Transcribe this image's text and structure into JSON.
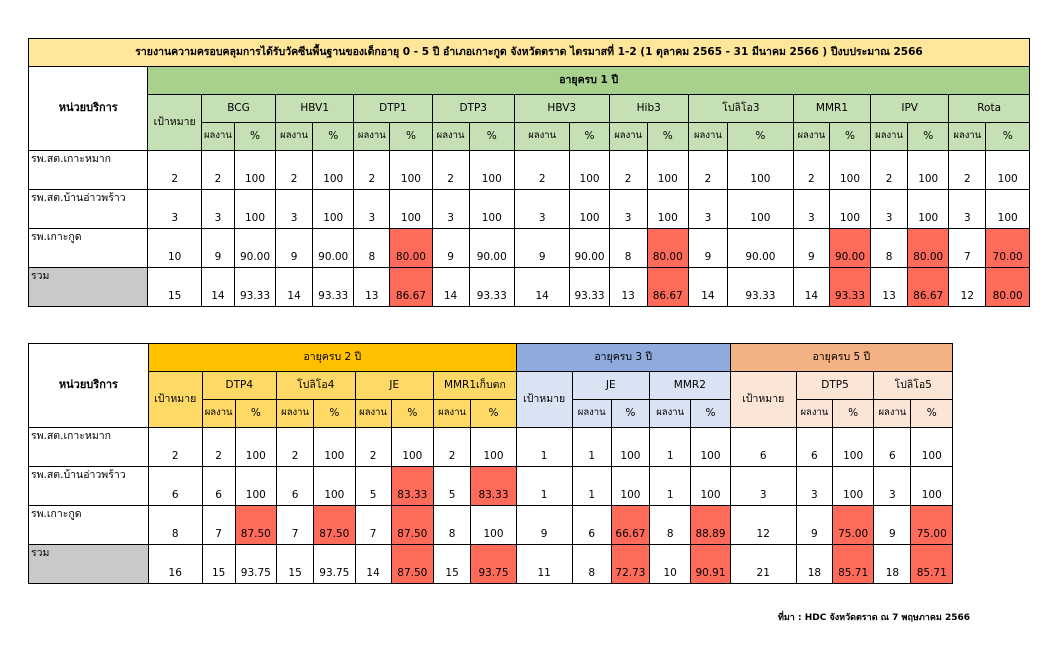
{
  "table1": {
    "title": "รายงานความครอบคลุมการได้รับวัคซีนพื้นฐานของเด็กอายุ 0 - 5 ปี อำเภอเกาะกูด จังหวัดตราด ไตรมาสที่ 1-2 (1 ตุลาคม 2565 - 31 มีนาคม 2566 ) ปีงบประมาณ 2566",
    "unit_header": "หน่วยบริการ",
    "age_header": "อายุครบ 1 ปี",
    "target_header": "เป้าหมาย",
    "vaccines": [
      "BCG",
      "HBV1",
      "DTP1",
      "DTP3",
      "HBV3",
      "Hib3",
      "โปลิโอ3",
      "MMR1",
      "IPV",
      "Rota"
    ],
    "result_label": "ผลงาน",
    "percent_label": "%",
    "rows": [
      {
        "name": "รพ.สต.เกาะหมาก",
        "target": "2",
        "cells": [
          [
            "2",
            "100",
            false
          ],
          [
            "2",
            "100",
            false
          ],
          [
            "2",
            "100",
            false
          ],
          [
            "2",
            "100",
            false
          ],
          [
            "2",
            "100",
            false
          ],
          [
            "2",
            "100",
            false
          ],
          [
            "2",
            "100",
            false
          ],
          [
            "2",
            "100",
            false
          ],
          [
            "2",
            "100",
            false
          ],
          [
            "2",
            "100",
            false
          ]
        ]
      },
      {
        "name": "รพ.สต.บ้านอ่าวพร้าว",
        "target": "3",
        "cells": [
          [
            "3",
            "100",
            false
          ],
          [
            "3",
            "100",
            false
          ],
          [
            "3",
            "100",
            false
          ],
          [
            "3",
            "100",
            false
          ],
          [
            "3",
            "100",
            false
          ],
          [
            "3",
            "100",
            false
          ],
          [
            "3",
            "100",
            false
          ],
          [
            "3",
            "100",
            false
          ],
          [
            "3",
            "100",
            false
          ],
          [
            "3",
            "100",
            false
          ]
        ]
      },
      {
        "name": "รพ.เกาะกูด",
        "target": "10",
        "cells": [
          [
            "9",
            "90.00",
            false
          ],
          [
            "9",
            "90.00",
            false
          ],
          [
            "8",
            "80.00",
            true
          ],
          [
            "9",
            "90.00",
            false
          ],
          [
            "9",
            "90.00",
            false
          ],
          [
            "8",
            "80.00",
            true
          ],
          [
            "9",
            "90.00",
            false
          ],
          [
            "9",
            "90.00",
            true
          ],
          [
            "8",
            "80.00",
            true
          ],
          [
            "7",
            "70.00",
            true
          ]
        ]
      },
      {
        "name": "รวม",
        "target": "15",
        "total": true,
        "cells": [
          [
            "14",
            "93.33",
            false
          ],
          [
            "14",
            "93.33",
            false
          ],
          [
            "13",
            "86.67",
            true
          ],
          [
            "14",
            "93.33",
            false
          ],
          [
            "14",
            "93.33",
            false
          ],
          [
            "13",
            "86.67",
            true
          ],
          [
            "14",
            "93.33",
            false
          ],
          [
            "14",
            "93.33",
            true
          ],
          [
            "13",
            "86.67",
            true
          ],
          [
            "12",
            "80.00",
            true
          ]
        ]
      }
    ]
  },
  "table2": {
    "unit_header": "หน่วยบริการ",
    "target_header": "เป้าหมาย",
    "result_label": "ผลงาน",
    "percent_label": "%",
    "groups": [
      {
        "label": "อายุครบ 2 ปี",
        "vaccines": [
          "DTP4",
          "โปลิโอ4",
          "JE",
          "MMR1เก็บตก"
        ]
      },
      {
        "label": "อายุครบ 3 ปี",
        "vaccines": [
          "JE",
          "MMR2"
        ]
      },
      {
        "label": "อายุครบ 5 ปี",
        "vaccines": [
          "DTP5",
          "โปลิโอ5"
        ]
      }
    ],
    "rows": [
      {
        "name": "รพ.สต.เกาะหมาก",
        "g1": {
          "target": "2",
          "cells": [
            [
              "2",
              "100",
              false
            ],
            [
              "2",
              "100",
              false
            ],
            [
              "2",
              "100",
              false
            ],
            [
              "2",
              "100",
              false
            ]
          ]
        },
        "g2": {
          "target": "1",
          "cells": [
            [
              "1",
              "100",
              false
            ],
            [
              "1",
              "100",
              false
            ]
          ]
        },
        "g3": {
          "target": "6",
          "cells": [
            [
              "6",
              "100",
              false
            ],
            [
              "6",
              "100",
              false
            ]
          ]
        }
      },
      {
        "name": "รพ.สต.บ้านอ่าวพร้าว",
        "g1": {
          "target": "6",
          "cells": [
            [
              "6",
              "100",
              false
            ],
            [
              "6",
              "100",
              false
            ],
            [
              "5",
              "83.33",
              true
            ],
            [
              "5",
              "83.33",
              true
            ]
          ]
        },
        "g2": {
          "target": "1",
          "cells": [
            [
              "1",
              "100",
              false
            ],
            [
              "1",
              "100",
              false
            ]
          ]
        },
        "g3": {
          "target": "3",
          "cells": [
            [
              "3",
              "100",
              false
            ],
            [
              "3",
              "100",
              false
            ]
          ]
        }
      },
      {
        "name": "รพ.เกาะกูด",
        "g1": {
          "target": "8",
          "cells": [
            [
              "7",
              "87.50",
              true
            ],
            [
              "7",
              "87.50",
              true
            ],
            [
              "7",
              "87.50",
              true
            ],
            [
              "8",
              "100",
              false
            ]
          ]
        },
        "g2": {
          "target": "9",
          "cells": [
            [
              "6",
              "66.67",
              true
            ],
            [
              "8",
              "88.89",
              true
            ]
          ]
        },
        "g3": {
          "target": "12",
          "cells": [
            [
              "9",
              "75.00",
              true
            ],
            [
              "9",
              "75.00",
              true
            ]
          ]
        }
      },
      {
        "name": "รวม",
        "total": true,
        "g1": {
          "target": "16",
          "cells": [
            [
              "15",
              "93.75",
              false
            ],
            [
              "15",
              "93.75",
              false
            ],
            [
              "14",
              "87.50",
              true
            ],
            [
              "15",
              "93.75",
              true
            ]
          ]
        },
        "g2": {
          "target": "11",
          "cells": [
            [
              "8",
              "72.73",
              true
            ],
            [
              "10",
              "90.91",
              true
            ]
          ]
        },
        "g3": {
          "target": "21",
          "cells": [
            [
              "18",
              "85.71",
              true
            ],
            [
              "18",
              "85.71",
              true
            ]
          ]
        }
      }
    ]
  },
  "source": "ที่มา : HDC จังหวัดตราด ณ 7 พฤษภาคม 2566",
  "colors": {
    "alert": "#ff6b5b",
    "age1": "#a9d18e",
    "age2": "#ffc000",
    "age3": "#8faadc",
    "age5": "#f4b183",
    "title": "#ffe699"
  }
}
